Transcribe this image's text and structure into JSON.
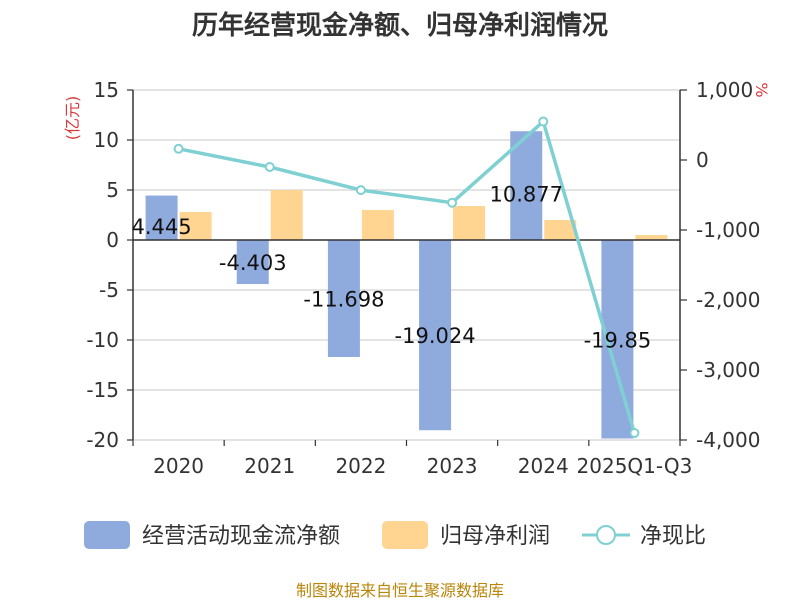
{
  "chart_data": {
    "type": "bar",
    "title": "历年经营现金净额、归母净利润情况",
    "categories": [
      "2020",
      "2021",
      "2022",
      "2023",
      "2024",
      "2025Q1-Q3"
    ],
    "series": [
      {
        "name": "经营活动现金流净额",
        "type": "bar",
        "axis": "left",
        "color": "#8faadc",
        "values": [
          4.445,
          -4.403,
          -11.698,
          -19.024,
          10.877,
          -19.85
        ]
      },
      {
        "name": "归母净利润",
        "type": "bar",
        "axis": "left",
        "color": "#ffd591",
        "values": [
          2.8,
          5.0,
          3.0,
          3.4,
          2.0,
          0.5
        ]
      },
      {
        "name": "净现比",
        "type": "line",
        "axis": "right",
        "color": "#7fd0d3",
        "values": [
          160,
          -100,
          -430,
          -610,
          550,
          -3900
        ]
      }
    ],
    "data_labels": [
      "4.445",
      "-4.403",
      "-11.698",
      "-19.024",
      "10.877",
      "-19.85"
    ],
    "y_left": {
      "label": "(亿元)",
      "ylim": [
        -20,
        15
      ],
      "ticks": [
        "15",
        "10",
        "5",
        "0",
        "-5",
        "-10",
        "-15",
        "-20"
      ],
      "tick_values": [
        15,
        10,
        5,
        0,
        -5,
        -10,
        -15,
        -20
      ]
    },
    "y_right": {
      "label": "%",
      "ylim": [
        -4000,
        1000
      ],
      "ticks": [
        "1,000",
        "0",
        "-1,000",
        "-2,000",
        "-3,000",
        "-4,000"
      ],
      "tick_values": [
        1000,
        0,
        -1000,
        -2000,
        -3000,
        -4000
      ]
    },
    "grid": true,
    "legend_position": "bottom"
  },
  "footer": {
    "source": "制图数据来自恒生聚源数据库"
  }
}
